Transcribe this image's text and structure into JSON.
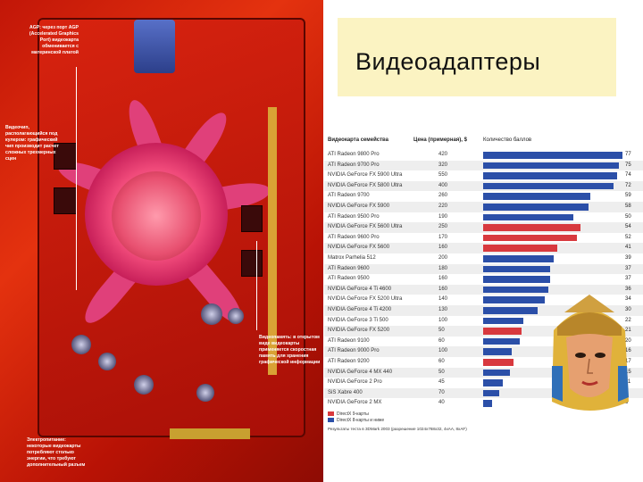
{
  "title": "Видеоадаптеры",
  "photo_notes": {
    "agp": "AGP: через порт AGP (Accelerated Graphics Port) видеокарта обменивается с материнской платой",
    "gpu": "Видеочип, располагающийся под кулером: графический чип производит расчет сложных трехмерных сцен",
    "memory": "Видеопамять: в открытом виде видеокарты применяется скоростная память для хранения графической информации",
    "power": "Электропитание: некоторые видеокарты потребляют столько энергии, что требуют дополнительный разъем"
  },
  "table": {
    "headers": {
      "name": "Видеокарта семейства",
      "price": "Цена (примерная), $",
      "score": "Количество баллов"
    },
    "max_score": 77,
    "rows": [
      {
        "name": "ATI Radeon 9800 Pro",
        "price": "420",
        "score": 77,
        "color": "#2b4fa8"
      },
      {
        "name": "ATI Radeon 9700 Pro",
        "price": "320",
        "score": 75,
        "color": "#2b4fa8"
      },
      {
        "name": "NVIDIA GeForce FX 5900 Ultra",
        "price": "550",
        "score": 74,
        "color": "#2b4fa8"
      },
      {
        "name": "NVIDIA GeForce FX 5800 Ultra",
        "price": "400",
        "score": 72,
        "color": "#2b4fa8"
      },
      {
        "name": "ATI Radeon 9700",
        "price": "260",
        "score": 59,
        "color": "#2b4fa8"
      },
      {
        "name": "NVIDIA GeForce FX 5900",
        "price": "220",
        "score": 58,
        "color": "#2b4fa8"
      },
      {
        "name": "ATI Radeon 9500 Pro",
        "price": "190",
        "score": 50,
        "color": "#2b4fa8"
      },
      {
        "name": "NVIDIA GeForce FX 5600 Ultra",
        "price": "250",
        "score": 54,
        "color": "#d8393e"
      },
      {
        "name": "ATI Radeon 9600 Pro",
        "price": "170",
        "score": 52,
        "color": "#d8393e"
      },
      {
        "name": "NVIDIA GeForce FX 5600",
        "price": "160",
        "score": 41,
        "color": "#d8393e"
      },
      {
        "name": "Matrox Parhelia 512",
        "price": "200",
        "score": 39,
        "color": "#2b4fa8"
      },
      {
        "name": "ATI Radeon 9600",
        "price": "180",
        "score": 37,
        "color": "#2b4fa8"
      },
      {
        "name": "ATI Radeon 9500",
        "price": "160",
        "score": 37,
        "color": "#2b4fa8"
      },
      {
        "name": "NVIDIA GeForce 4 Ti 4600",
        "price": "160",
        "score": 36,
        "color": "#2b4fa8"
      },
      {
        "name": "NVIDIA GeForce FX 5200 Ultra",
        "price": "140",
        "score": 34,
        "color": "#2b4fa8"
      },
      {
        "name": "NVIDIA GeForce 4 Ti 4200",
        "price": "130",
        "score": 30,
        "color": "#2b4fa8"
      },
      {
        "name": "NVIDIA GeForce 3 Ti 500",
        "price": "100",
        "score": 22,
        "color": "#2b4fa8"
      },
      {
        "name": "NVIDIA GeForce FX 5200",
        "price": "50",
        "score": 21,
        "color": "#d8393e"
      },
      {
        "name": "ATI Radeon 9100",
        "price": "60",
        "score": 20,
        "color": "#2b4fa8"
      },
      {
        "name": "ATI Radeon 9000 Pro",
        "price": "100",
        "score": 16,
        "color": "#2b4fa8"
      },
      {
        "name": "ATI Radeon 9200",
        "price": "60",
        "score": 17,
        "color": "#d8393e"
      },
      {
        "name": "NVIDIA GeForce 4 MX 440",
        "price": "50",
        "score": 15,
        "color": "#2b4fa8"
      },
      {
        "name": "NVIDIA GeForce 2 Pro",
        "price": "45",
        "score": 11,
        "color": "#2b4fa8"
      },
      {
        "name": "SiS Xabre 400",
        "price": "70",
        "score": 9,
        "color": "#2b4fa8"
      },
      {
        "name": "NVIDIA GeForce 2 MX",
        "price": "40",
        "score": 5,
        "color": "#2b4fa8"
      }
    ],
    "legend": [
      {
        "label": "DirectX 9-карты",
        "color": "#d8393e"
      },
      {
        "label": "DirectX 8-карты и ниже",
        "color": "#2b4fa8"
      }
    ],
    "footnote": "Результаты теста в 3DMark 2003 (разрешение 1024x768x32, 4xAA, 8xAF)"
  }
}
